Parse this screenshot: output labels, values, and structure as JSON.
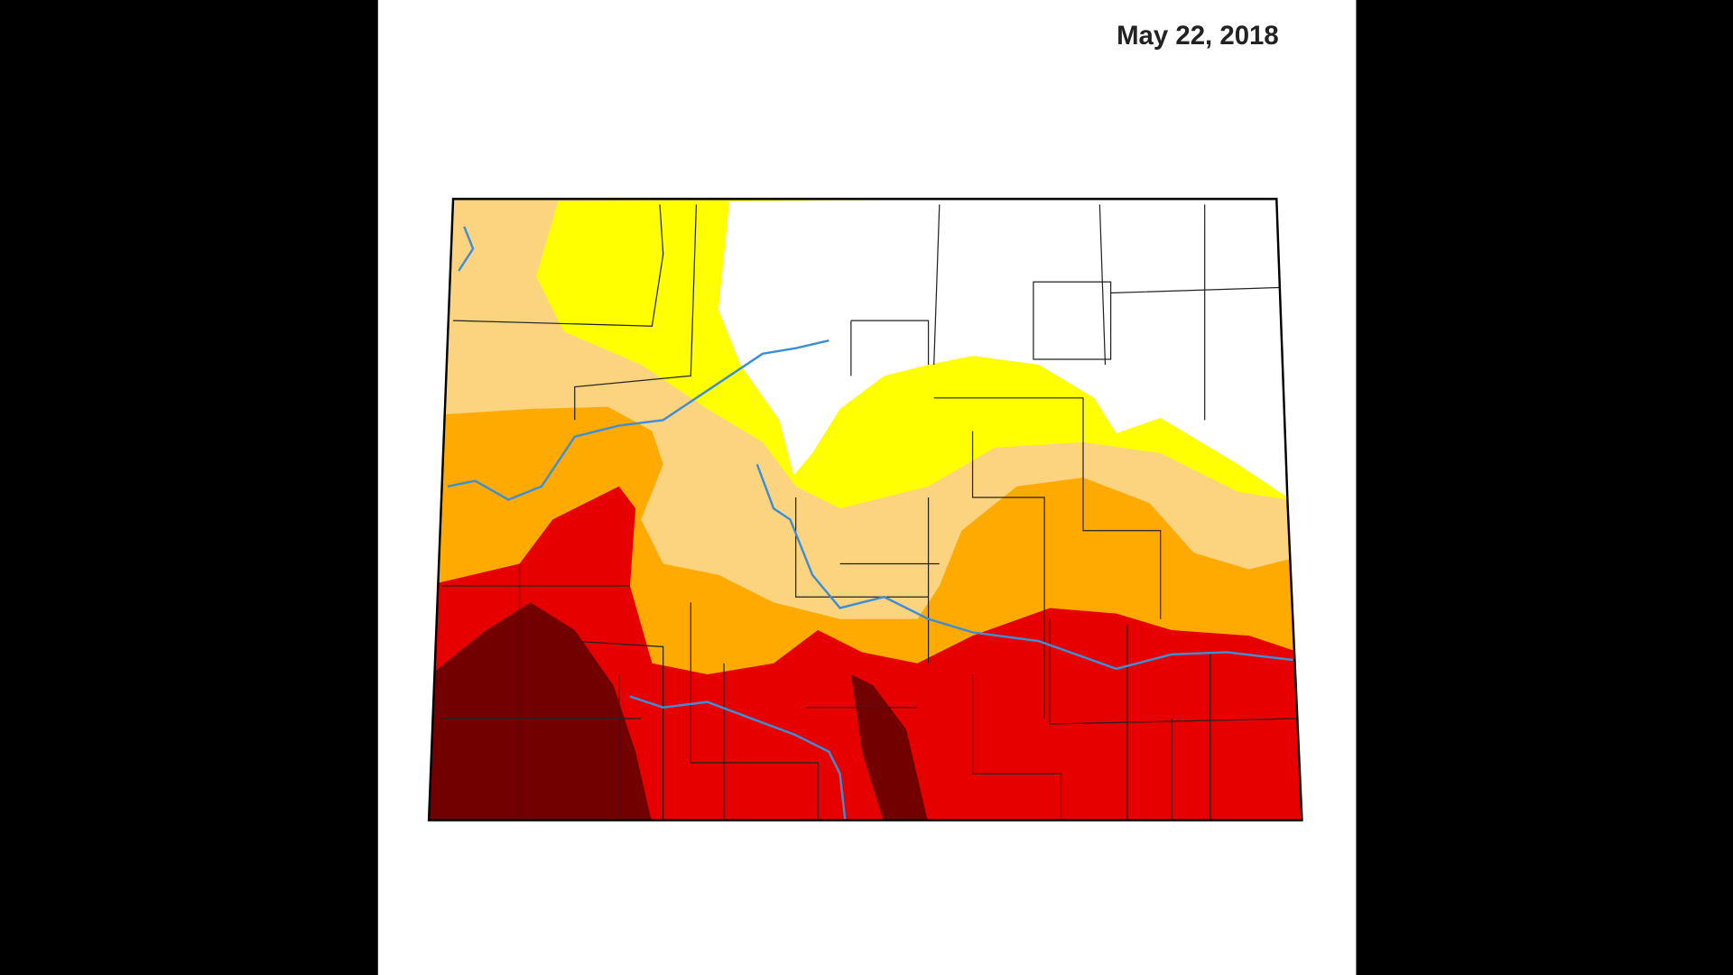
{
  "date": "May 22, 2018"
}
